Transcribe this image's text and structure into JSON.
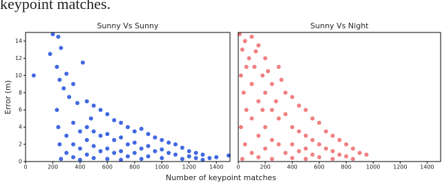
{
  "caption": "keypoint matches.",
  "xlabel": "Number of keypoint matches",
  "chart_data": [
    {
      "type": "scatter",
      "title": "Sunny Vs Sunny",
      "ylabel": "Error (m)",
      "color": "#4169e1",
      "xlim": [
        0,
        1500
      ],
      "ylim": [
        0,
        15
      ],
      "xticks": [
        0,
        200,
        400,
        600,
        800,
        1000,
        1200,
        1400
      ],
      "yticks": [
        0,
        2,
        4,
        6,
        8,
        10,
        12,
        14
      ],
      "x": [
        60,
        180,
        200,
        240,
        260,
        230,
        250,
        280,
        300,
        320,
        350,
        420,
        380,
        450,
        500,
        550,
        600,
        480,
        650,
        700,
        750,
        800,
        850,
        900,
        950,
        1000,
        1050,
        1100,
        1150,
        1200,
        1250,
        1300,
        1400,
        1490,
        230,
        240,
        250,
        260,
        300,
        300,
        350,
        350,
        350,
        400,
        400,
        400,
        450,
        450,
        450,
        500,
        500,
        500,
        550,
        550,
        600,
        600,
        600,
        650,
        650,
        700,
        700,
        700,
        750,
        750,
        800,
        800,
        850,
        850,
        900,
        900,
        950,
        1000,
        1000,
        1050,
        1100,
        1150,
        1200,
        1250,
        1300,
        1350
      ],
      "y": [
        10,
        12.5,
        14.8,
        14.5,
        13.2,
        11,
        9.5,
        8.5,
        10.2,
        7.5,
        9,
        11.5,
        6.8,
        7,
        6.5,
        6,
        5.5,
        5,
        4.8,
        4.5,
        4,
        3.5,
        3.8,
        3.2,
        2.8,
        2.5,
        2.2,
        2,
        1.6,
        1.2,
        1,
        0.8,
        0.5,
        0.7,
        6,
        4,
        2,
        0.3,
        3,
        1,
        4.5,
        2,
        0.5,
        3.5,
        1.5,
        0.2,
        4,
        2.5,
        0.8,
        3.5,
        1.8,
        0.4,
        3,
        1.2,
        3.2,
        1.5,
        0.3,
        2.5,
        1,
        2.8,
        1.2,
        0.2,
        2,
        0.6,
        2.2,
        1,
        1.5,
        0.3,
        1.8,
        0.6,
        1.2,
        1.4,
        0.4,
        1,
        0.8,
        0.3,
        0.6,
        0.4,
        0.2,
        0.4
      ]
    },
    {
      "type": "scatter",
      "title": "Sunny Vs Night",
      "color": "#f08080",
      "xlim": [
        0,
        1500
      ],
      "ylim": [
        0,
        15
      ],
      "xticks": [
        0,
        200,
        400,
        600,
        800,
        1000,
        1200,
        1400
      ],
      "x": [
        10,
        30,
        50,
        80,
        100,
        120,
        150,
        180,
        200,
        250,
        300,
        280,
        350,
        400,
        450,
        500,
        550,
        600,
        650,
        700,
        750,
        800,
        850,
        900,
        950,
        20,
        40,
        60,
        20,
        50,
        30,
        100,
        100,
        100,
        150,
        150,
        150,
        200,
        200,
        200,
        250,
        250,
        250,
        300,
        300,
        350,
        350,
        400,
        400,
        400,
        450,
        450,
        500,
        500,
        500,
        550,
        550,
        600,
        600,
        650,
        700,
        700,
        750,
        800,
        850,
        60,
        130,
        220,
        320,
        180
      ],
      "y": [
        14.8,
        13,
        14,
        12,
        14.5,
        11,
        13.5,
        10,
        12,
        9,
        11,
        7,
        8,
        7.5,
        6.5,
        6,
        5,
        4.5,
        3.5,
        3,
        2.5,
        2,
        1.5,
        1,
        0.8,
        10,
        8,
        6,
        4,
        2,
        0.3,
        9,
        5,
        1,
        7,
        3,
        0.5,
        8,
        4,
        1.5,
        6,
        2.5,
        0.3,
        5,
        2,
        5.5,
        1,
        4,
        2,
        0.4,
        3.5,
        1.2,
        3,
        1.5,
        0.3,
        2.5,
        0.8,
        2,
        0.5,
        1.5,
        1.2,
        0.3,
        0.8,
        0.6,
        0.3,
        11,
        12.8,
        10.5,
        9.5,
        6
      ]
    }
  ]
}
